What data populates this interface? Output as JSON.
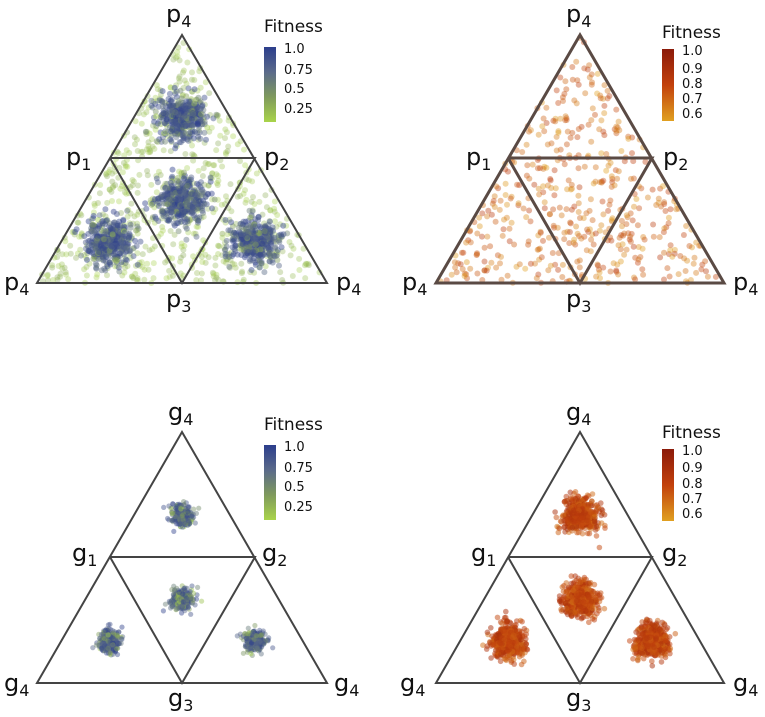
{
  "panels": [
    {
      "id": "top-left",
      "vertex_letter": "p",
      "vertex_labels": [
        "4",
        "1",
        "2",
        "4",
        "3",
        "4"
      ],
      "colorbar": {
        "title": "Fitness",
        "ticks": [
          "1.0",
          "0.75",
          "0.5",
          "0.25"
        ],
        "colors": [
          "#2c3e8c",
          "#5a6a8a",
          "#7f9a5c",
          "#a9d44a"
        ]
      },
      "distribution": "dense-clusters-with-scatter",
      "palette": "blue-green"
    },
    {
      "id": "top-right",
      "vertex_letter": "p",
      "vertex_labels": [
        "4",
        "1",
        "2",
        "4",
        "3",
        "4"
      ],
      "colorbar": {
        "title": "Fitness",
        "ticks": [
          "1.0",
          "0.9",
          "0.8",
          "0.7",
          "0.6"
        ],
        "colors": [
          "#8b1a0a",
          "#c2410c",
          "#e0a020"
        ]
      },
      "distribution": "uniform-scatter",
      "palette": "orange-red"
    },
    {
      "id": "bottom-left",
      "vertex_letter": "g",
      "vertex_labels": [
        "4",
        "1",
        "2",
        "4",
        "3",
        "4"
      ],
      "colorbar": {
        "title": "Fitness",
        "ticks": [
          "1.0",
          "0.75",
          "0.5",
          "0.25"
        ],
        "colors": [
          "#2c3e8c",
          "#5a6a8a",
          "#7f9a5c",
          "#a9d44a"
        ]
      },
      "distribution": "small-clusters",
      "palette": "blue-green"
    },
    {
      "id": "bottom-right",
      "vertex_letter": "g",
      "vertex_labels": [
        "4",
        "1",
        "2",
        "4",
        "3",
        "4"
      ],
      "colorbar": {
        "title": "Fitness",
        "ticks": [
          "1.0",
          "0.9",
          "0.8",
          "0.7",
          "0.6"
        ],
        "colors": [
          "#8b1a0a",
          "#c2410c",
          "#e0a020"
        ]
      },
      "distribution": "trefoil-clusters",
      "palette": "orange-red"
    }
  ]
}
